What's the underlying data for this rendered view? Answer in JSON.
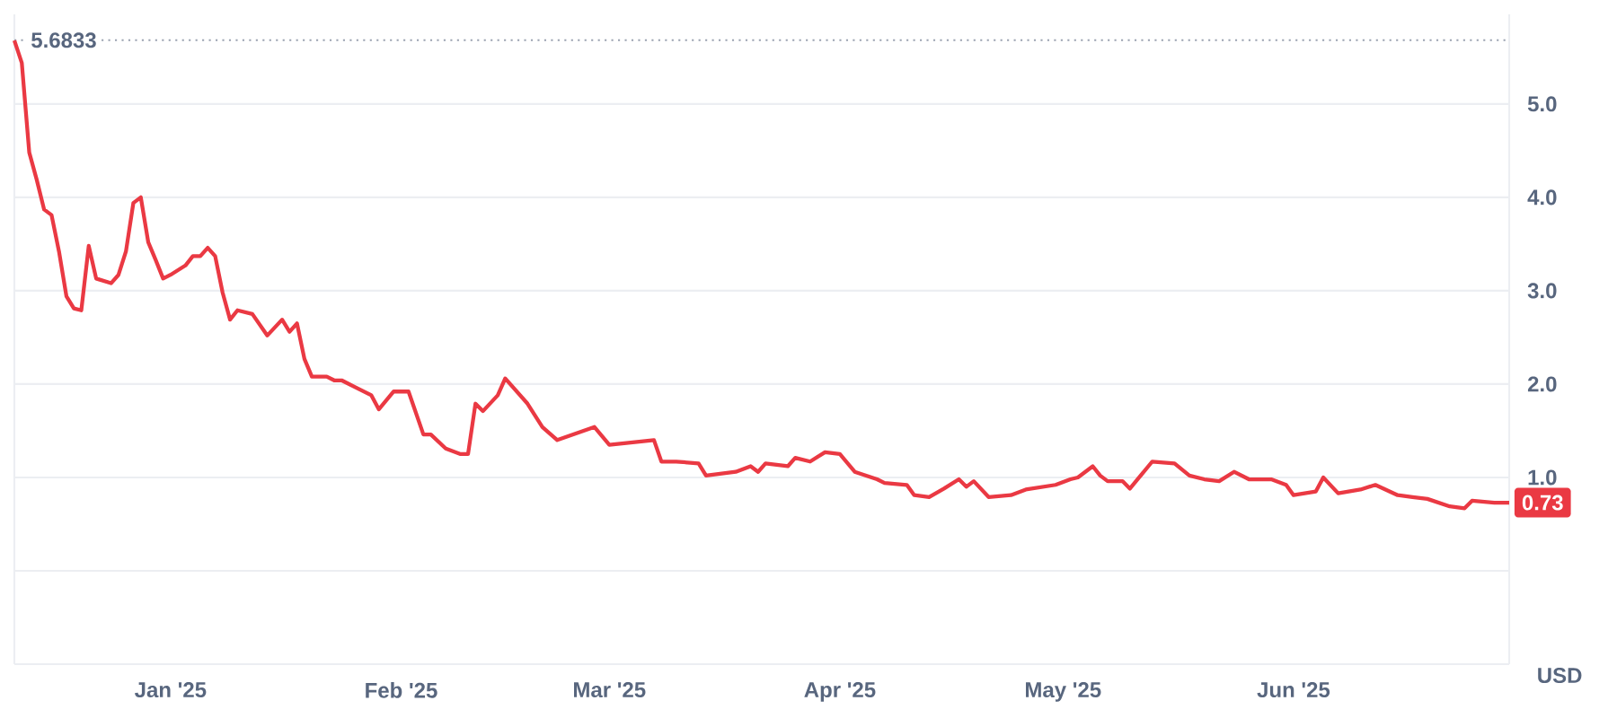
{
  "chart_data": {
    "type": "line",
    "ylabel": "USD",
    "color": "#ea3943",
    "grid": "y",
    "xlim": [
      "2024-12-11",
      "2025-06-30"
    ],
    "xticks": [
      {
        "value": "2025-01-01",
        "label": "Jan '25"
      },
      {
        "value": "2025-02-01",
        "label": "Feb '25"
      },
      {
        "value": "2025-03-01",
        "label": "Mar '25"
      },
      {
        "value": "2025-04-01",
        "label": "Apr '25"
      },
      {
        "value": "2025-05-01",
        "label": "May '25"
      },
      {
        "value": "2025-06-01",
        "label": "Jun '25"
      }
    ],
    "ylim": [
      -1,
      5.96
    ],
    "yticks": [
      {
        "value": -1,
        "label": null
      },
      {
        "value": 0,
        "label": null
      },
      {
        "value": 1,
        "label": "1.0"
      },
      {
        "value": 2,
        "label": "2.0"
      },
      {
        "value": 3,
        "label": "3.0"
      },
      {
        "value": 4,
        "label": "4.0"
      },
      {
        "value": 5,
        "label": "5.0"
      }
    ],
    "ref_lines": [
      {
        "axis": "y",
        "value": 5.6833,
        "label": "5.6833",
        "line_style": "dotted"
      }
    ],
    "annotations": [
      {
        "text": "0.73",
        "x": "2025-06-30",
        "y": 0.73
      }
    ],
    "x": [
      "2024-12-11",
      "2024-12-12",
      "2024-12-13",
      "2024-12-14",
      "2024-12-15",
      "2024-12-16",
      "2024-12-17",
      "2024-12-18",
      "2024-12-19",
      "2024-12-20",
      "2024-12-21",
      "2024-12-22",
      "2024-12-24",
      "2024-12-25",
      "2024-12-26",
      "2024-12-27",
      "2024-12-28",
      "2024-12-29",
      "2024-12-30",
      "2024-12-31",
      "2025-01-01",
      "2025-01-03",
      "2025-01-04",
      "2025-01-05",
      "2025-01-06",
      "2025-01-07",
      "2025-01-08",
      "2025-01-09",
      "2025-01-10",
      "2025-01-12",
      "2025-01-14",
      "2025-01-16",
      "2025-01-17",
      "2025-01-18",
      "2025-01-19",
      "2025-01-20",
      "2025-01-22",
      "2025-01-23",
      "2025-01-24",
      "2025-01-26",
      "2025-01-28",
      "2025-01-29",
      "2025-01-31",
      "2025-02-02",
      "2025-02-04",
      "2025-02-05",
      "2025-02-07",
      "2025-02-09",
      "2025-02-10",
      "2025-02-11",
      "2025-02-12",
      "2025-02-14",
      "2025-02-15",
      "2025-02-18",
      "2025-02-20",
      "2025-02-22",
      "2025-02-27",
      "2025-03-01",
      "2025-03-07",
      "2025-03-08",
      "2025-03-10",
      "2025-03-13",
      "2025-03-14",
      "2025-03-18",
      "2025-03-20",
      "2025-03-21",
      "2025-03-22",
      "2025-03-25",
      "2025-03-26",
      "2025-03-28",
      "2025-03-30",
      "2025-04-01",
      "2025-04-03",
      "2025-04-06",
      "2025-04-07",
      "2025-04-10",
      "2025-04-11",
      "2025-04-13",
      "2025-04-15",
      "2025-04-17",
      "2025-04-18",
      "2025-04-19",
      "2025-04-21",
      "2025-04-24",
      "2025-04-26",
      "2025-04-30",
      "2025-05-02",
      "2025-05-03",
      "2025-05-05",
      "2025-05-06",
      "2025-05-07",
      "2025-05-09",
      "2025-05-10",
      "2025-05-13",
      "2025-05-16",
      "2025-05-18",
      "2025-05-20",
      "2025-05-22",
      "2025-05-24",
      "2025-05-26",
      "2025-05-29",
      "2025-05-31",
      "2025-06-01",
      "2025-06-04",
      "2025-06-05",
      "2025-06-07",
      "2025-06-10",
      "2025-06-12",
      "2025-06-15",
      "2025-06-17",
      "2025-06-19",
      "2025-06-22",
      "2025-06-24",
      "2025-06-25",
      "2025-06-28",
      "2025-06-30"
    ],
    "values": [
      5.68,
      5.44,
      4.48,
      4.19,
      3.87,
      3.81,
      3.42,
      2.94,
      2.81,
      2.79,
      3.48,
      3.13,
      3.08,
      3.17,
      3.42,
      3.94,
      4.0,
      3.52,
      3.33,
      3.13,
      3.17,
      3.27,
      3.37,
      3.37,
      3.46,
      3.37,
      2.98,
      2.69,
      2.79,
      2.75,
      2.52,
      2.69,
      2.56,
      2.65,
      2.27,
      2.08,
      2.08,
      2.04,
      2.04,
      1.96,
      1.88,
      1.73,
      1.92,
      1.92,
      1.46,
      1.46,
      1.31,
      1.25,
      1.25,
      1.79,
      1.71,
      1.88,
      2.06,
      1.79,
      1.54,
      1.4,
      1.54,
      1.35,
      1.4,
      1.17,
      1.17,
      1.15,
      1.02,
      1.06,
      1.12,
      1.06,
      1.15,
      1.12,
      1.21,
      1.17,
      1.27,
      1.25,
      1.06,
      0.98,
      0.94,
      0.92,
      0.81,
      0.79,
      0.88,
      0.98,
      0.9,
      0.96,
      0.79,
      0.81,
      0.87,
      0.92,
      0.98,
      1.0,
      1.12,
      1.02,
      0.96,
      0.96,
      0.88,
      1.17,
      1.15,
      1.02,
      0.98,
      0.96,
      1.06,
      0.98,
      0.98,
      0.92,
      0.81,
      0.85,
      1.0,
      0.83,
      0.87,
      0.92,
      0.81,
      0.79,
      0.77,
      0.69,
      0.67,
      0.75,
      0.73,
      0.73
    ]
  }
}
